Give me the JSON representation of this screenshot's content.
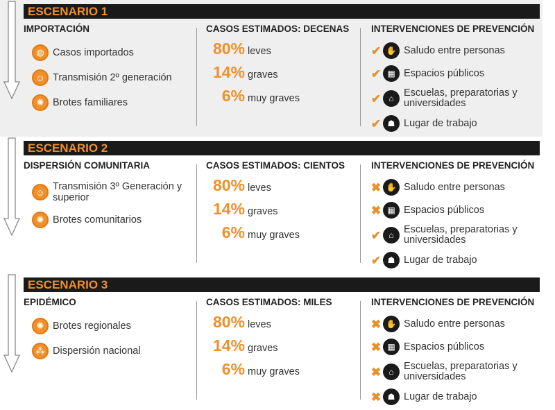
{
  "colors": {
    "accent": "#f0902a",
    "header_bg": "#1a1a1a",
    "panel_bg": "#efefef"
  },
  "scenarios": [
    {
      "title": "ESCENARIO 1",
      "phase": "IMPORTACIÓN",
      "phase_items": [
        {
          "label": "Casos importados",
          "icon": "globe-icon"
        },
        {
          "label": "Transmisión 2º generación",
          "icon": "people-icon"
        },
        {
          "label": "Brotes familiares",
          "icon": "virus-icon"
        }
      ],
      "cases_title": "CASOS ESTIMADOS: DECENAS",
      "cases": [
        {
          "pct": "80%",
          "label": "leves"
        },
        {
          "pct": "14%",
          "label": "graves"
        },
        {
          "pct": "6%",
          "label": "muy graves"
        }
      ],
      "interventions_title": "INTERVENCIONES DE PREVENCIÓN",
      "interventions": [
        {
          "label": "Saludo entre personas",
          "status": "check"
        },
        {
          "label": "Espacios públicos",
          "status": "check"
        },
        {
          "label": "Escuelas, preparatorias y universidades",
          "status": "check"
        },
        {
          "label": "Lugar de trabajo",
          "status": "check"
        }
      ]
    },
    {
      "title": "ESCENARIO 2",
      "phase": "DISPERSIÓN COMUNITARIA",
      "phase_items": [
        {
          "label": "Transmisión 3º Generación y superior",
          "icon": "people-icon"
        },
        {
          "label": "Brotes comunitarios",
          "icon": "virus-icon"
        }
      ],
      "cases_title": "CASOS ESTIMADOS: CIENTOS",
      "cases": [
        {
          "pct": "80%",
          "label": "leves"
        },
        {
          "pct": "14%",
          "label": "graves"
        },
        {
          "pct": "6%",
          "label": "muy graves"
        }
      ],
      "interventions_title": "INTERVENCIONES DE PREVENCIÓN",
      "interventions": [
        {
          "label": "Saludo entre personas",
          "status": "cross"
        },
        {
          "label": "Espacios públicos",
          "status": "cross"
        },
        {
          "label": "Escuelas, preparatorias y universidades",
          "status": "check"
        },
        {
          "label": "Lugar de trabajo",
          "status": "check"
        }
      ]
    },
    {
      "title": "ESCENARIO 3",
      "phase": "EPIDÉMICO",
      "phase_items": [
        {
          "label": "Brotes regionales",
          "icon": "virus-icon"
        },
        {
          "label": "Dispersión nacional",
          "icon": "spread-icon"
        }
      ],
      "cases_title": "CASOS ESTIMADOS: MILES",
      "cases": [
        {
          "pct": "80%",
          "label": "leves"
        },
        {
          "pct": "14%",
          "label": "graves"
        },
        {
          "pct": "6%",
          "label": "muy graves"
        }
      ],
      "interventions_title": "INTERVENCIONES DE PREVENCIÓN",
      "interventions": [
        {
          "label": "Saludo entre personas",
          "status": "cross"
        },
        {
          "label": "Espacios públicos",
          "status": "cross"
        },
        {
          "label": "Escuelas, preparatorias y universidades",
          "status": "cross"
        },
        {
          "label": "Lugar de trabajo",
          "status": "cross"
        }
      ]
    }
  ]
}
